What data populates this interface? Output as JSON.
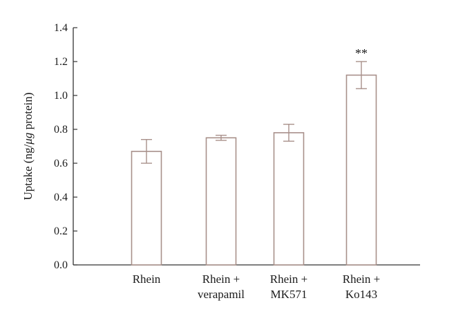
{
  "chart_data": {
    "type": "bar",
    "categories": [
      [
        "Rhein"
      ],
      [
        "Rhein +",
        "verapamil"
      ],
      [
        "Rhein +",
        "MK571"
      ],
      [
        "Rhein +",
        "Ko143"
      ]
    ],
    "values": [
      0.67,
      0.75,
      0.78,
      1.12
    ],
    "errors": [
      0.07,
      0.015,
      0.05,
      0.08
    ],
    "annotations": [
      "",
      "",
      "",
      "**"
    ],
    "ylabel_parts": [
      "Uptake (ng/",
      "μg",
      " protein)"
    ],
    "xlabel": "",
    "ylim": [
      0.0,
      1.4
    ],
    "yticks": [
      "0.0",
      "0.2",
      "0.4",
      "0.6",
      "0.8",
      "1.0",
      "1.2",
      "1.4"
    ],
    "colors": {
      "bar_stroke": "#a8908a",
      "bar_fill": "#ffffff",
      "error": "#a8908a",
      "axis": "#333333"
    },
    "grid": false
  }
}
